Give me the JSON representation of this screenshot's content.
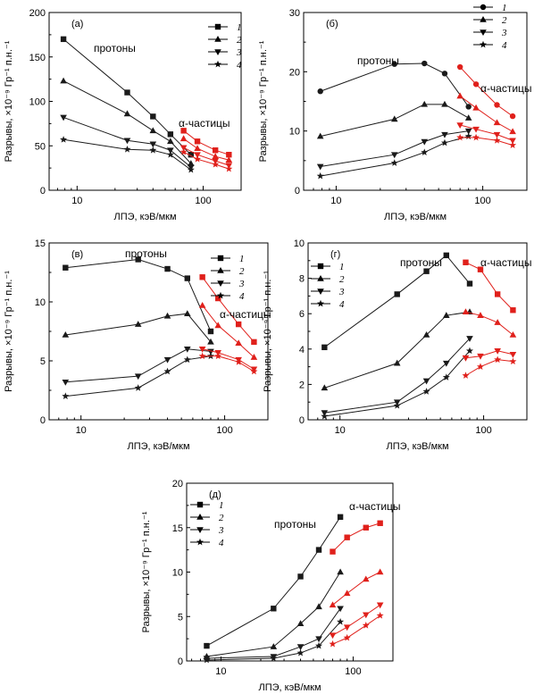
{
  "colors": {
    "protons": "#1a1a1a",
    "alpha": "#e0201b"
  },
  "common": {
    "ylabel": "Разрывы, ×10⁻⁹ Гр⁻¹ п.н.⁻¹",
    "xlabel": "ЛПЭ, кэВ/мкм",
    "protons_label": "протоны",
    "alpha_label": "α-частицы"
  },
  "chart_data": [
    {
      "type": "line",
      "panel": "(а)",
      "xscale": "log",
      "xlim": [
        6,
        200
      ],
      "ylim": [
        0,
        200
      ],
      "yticks": [
        0,
        50,
        100,
        150,
        200
      ],
      "xticks": [
        10,
        100
      ],
      "legend": [
        "1",
        "2",
        "3",
        "4"
      ],
      "protons": [
        {
          "name": "1",
          "marker": "square",
          "x": [
            7.8,
            25,
            40,
            55,
            80
          ],
          "y": [
            170,
            110,
            83,
            63,
            40
          ]
        },
        {
          "name": "2",
          "marker": "triangle-up",
          "x": [
            7.8,
            25,
            40,
            55,
            80
          ],
          "y": [
            123,
            86,
            67,
            55,
            30
          ]
        },
        {
          "name": "3",
          "marker": "triangle-down",
          "x": [
            7.8,
            25,
            40,
            55,
            80
          ],
          "y": [
            82,
            56,
            52,
            45,
            26
          ]
        },
        {
          "name": "4",
          "marker": "star",
          "x": [
            7.8,
            25,
            40,
            55,
            80
          ],
          "y": [
            57,
            46,
            45,
            40,
            23
          ]
        }
      ],
      "alpha": [
        {
          "name": "1",
          "marker": "square",
          "x": [
            70,
            90,
            125,
            160
          ],
          "y": [
            67,
            55,
            45,
            40
          ]
        },
        {
          "name": "2",
          "marker": "triangle-up",
          "x": [
            70,
            90,
            125,
            160
          ],
          "y": [
            58,
            47,
            38,
            34
          ]
        },
        {
          "name": "3",
          "marker": "triangle-down",
          "x": [
            70,
            90,
            125,
            160
          ],
          "y": [
            48,
            40,
            33,
            28
          ]
        },
        {
          "name": "4",
          "marker": "star",
          "x": [
            70,
            90,
            125,
            160
          ],
          "y": [
            43,
            35,
            29,
            24
          ]
        }
      ]
    },
    {
      "type": "line",
      "panel": "(б)",
      "xscale": "log",
      "xlim": [
        6,
        200
      ],
      "ylim": [
        0,
        30
      ],
      "yticks": [
        0,
        10,
        20,
        30
      ],
      "xticks": [
        10,
        100
      ],
      "legend": [
        "1",
        "2",
        "3",
        "4"
      ],
      "protons": [
        {
          "name": "1",
          "marker": "circle",
          "x": [
            7.8,
            25,
            40,
            55,
            80
          ],
          "y": [
            16.7,
            21.3,
            21.4,
            19.7,
            14.1
          ]
        },
        {
          "name": "2",
          "marker": "triangle-up",
          "x": [
            7.8,
            25,
            40,
            55,
            80
          ],
          "y": [
            9.1,
            12.0,
            14.5,
            14.5,
            12.2
          ]
        },
        {
          "name": "3",
          "marker": "triangle-down",
          "x": [
            7.8,
            25,
            40,
            55,
            80
          ],
          "y": [
            4.0,
            6.0,
            8.2,
            9.4,
            10.0
          ]
        },
        {
          "name": "4",
          "marker": "star",
          "x": [
            7.8,
            25,
            40,
            55,
            80
          ],
          "y": [
            2.4,
            4.6,
            6.4,
            8.0,
            9.1
          ]
        }
      ],
      "alpha": [
        {
          "name": "1",
          "marker": "circle",
          "x": [
            70,
            90,
            125,
            160
          ],
          "y": [
            20.8,
            17.9,
            14.4,
            12.5
          ]
        },
        {
          "name": "2",
          "marker": "triangle-up",
          "x": [
            70,
            90,
            125,
            160
          ],
          "y": [
            15.9,
            13.9,
            11.4,
            9.9
          ]
        },
        {
          "name": "3",
          "marker": "triangle-down",
          "x": [
            70,
            90,
            125,
            160
          ],
          "y": [
            11.0,
            10.3,
            9.4,
            8.4
          ]
        },
        {
          "name": "4",
          "marker": "star",
          "x": [
            70,
            90,
            125,
            160
          ],
          "y": [
            8.9,
            8.9,
            8.4,
            7.6
          ]
        }
      ]
    },
    {
      "type": "line",
      "panel": "(в)",
      "xscale": "log",
      "xlim": [
        6,
        200
      ],
      "ylim": [
        0,
        15
      ],
      "yticks": [
        0,
        5,
        10,
        15
      ],
      "xticks": [
        10,
        100
      ],
      "legend": [
        "1",
        "2",
        "3",
        "4"
      ],
      "protons": [
        {
          "name": "1",
          "marker": "square",
          "x": [
            7.8,
            25,
            40,
            55,
            80
          ],
          "y": [
            12.9,
            13.6,
            12.8,
            12.0,
            7.5
          ]
        },
        {
          "name": "2",
          "marker": "triangle-up",
          "x": [
            7.8,
            25,
            40,
            55,
            80
          ],
          "y": [
            7.2,
            8.1,
            8.8,
            9.0,
            6.6
          ]
        },
        {
          "name": "3",
          "marker": "triangle-down",
          "x": [
            7.8,
            25,
            40,
            55,
            80
          ],
          "y": [
            3.2,
            3.7,
            5.1,
            6.0,
            5.8
          ]
        },
        {
          "name": "4",
          "marker": "star",
          "x": [
            7.8,
            25,
            40,
            55,
            80
          ],
          "y": [
            2.0,
            2.7,
            4.1,
            5.1,
            5.4
          ]
        }
      ],
      "alpha": [
        {
          "name": "1",
          "marker": "square",
          "x": [
            70,
            90,
            125,
            160
          ],
          "y": [
            12.1,
            10.3,
            8.1,
            6.6
          ]
        },
        {
          "name": "2",
          "marker": "triangle-up",
          "x": [
            70,
            90,
            125,
            160
          ],
          "y": [
            9.7,
            8.0,
            6.5,
            5.3
          ]
        },
        {
          "name": "3",
          "marker": "triangle-down",
          "x": [
            70,
            90,
            125,
            160
          ],
          "y": [
            6.0,
            5.7,
            5.1,
            4.3
          ]
        },
        {
          "name": "4",
          "marker": "star",
          "x": [
            70,
            90,
            125,
            160
          ],
          "y": [
            5.4,
            5.4,
            4.9,
            4.1
          ]
        }
      ]
    },
    {
      "type": "line",
      "panel": "(г)",
      "xscale": "log",
      "xlim": [
        6,
        200
      ],
      "ylim": [
        0,
        10
      ],
      "yticks": [
        0,
        2,
        4,
        6,
        8,
        10
      ],
      "xticks": [
        10,
        100
      ],
      "legend": [
        "1",
        "2",
        "3",
        "4"
      ],
      "protons": [
        {
          "name": "1",
          "marker": "square",
          "x": [
            7.8,
            25,
            40,
            55,
            80
          ],
          "y": [
            4.1,
            7.1,
            8.4,
            9.3,
            7.7
          ]
        },
        {
          "name": "2",
          "marker": "triangle-up",
          "x": [
            7.8,
            25,
            40,
            55,
            80
          ],
          "y": [
            1.8,
            3.2,
            4.8,
            5.9,
            6.1
          ]
        },
        {
          "name": "3",
          "marker": "triangle-down",
          "x": [
            7.8,
            25,
            40,
            55,
            80
          ],
          "y": [
            0.4,
            1.0,
            2.2,
            3.2,
            4.6
          ]
        },
        {
          "name": "4",
          "marker": "star",
          "x": [
            7.8,
            25,
            40,
            55,
            80
          ],
          "y": [
            0.2,
            0.8,
            1.6,
            2.4,
            3.9
          ]
        }
      ],
      "alpha": [
        {
          "name": "1",
          "marker": "square",
          "x": [
            75,
            95,
            125,
            160
          ],
          "y": [
            8.9,
            8.5,
            7.1,
            6.2
          ]
        },
        {
          "name": "2",
          "marker": "triangle-up",
          "x": [
            75,
            95,
            125,
            160
          ],
          "y": [
            6.1,
            5.9,
            5.5,
            4.8
          ]
        },
        {
          "name": "3",
          "marker": "triangle-down",
          "x": [
            75,
            95,
            125,
            160
          ],
          "y": [
            3.5,
            3.6,
            3.9,
            3.7
          ]
        },
        {
          "name": "4",
          "marker": "star",
          "x": [
            75,
            95,
            125,
            160
          ],
          "y": [
            2.5,
            3.0,
            3.4,
            3.3
          ]
        }
      ]
    },
    {
      "type": "line",
      "panel": "(д)",
      "xscale": "log",
      "xlim": [
        5.5,
        200
      ],
      "ylim": [
        0,
        20
      ],
      "yticks": [
        0,
        5,
        10,
        15,
        20
      ],
      "xticks": [
        10,
        100
      ],
      "legend": [
        "1",
        "2",
        "3",
        "4"
      ],
      "protons": [
        {
          "name": "1",
          "marker": "square",
          "x": [
            7.8,
            25,
            40,
            55,
            80
          ],
          "y": [
            1.7,
            5.9,
            9.5,
            12.5,
            16.2
          ]
        },
        {
          "name": "2",
          "marker": "triangle-up",
          "x": [
            7.8,
            25,
            40,
            55,
            80
          ],
          "y": [
            0.5,
            1.6,
            4.2,
            6.1,
            10.0
          ]
        },
        {
          "name": "3",
          "marker": "triangle-down",
          "x": [
            7.8,
            25,
            40,
            55,
            80
          ],
          "y": [
            0.3,
            0.5,
            1.6,
            2.5,
            5.9
          ]
        },
        {
          "name": "4",
          "marker": "star",
          "x": [
            7.8,
            25,
            40,
            55,
            80
          ],
          "y": [
            0.1,
            0.3,
            0.9,
            1.7,
            4.4
          ]
        }
      ],
      "alpha": [
        {
          "name": "1",
          "marker": "square",
          "x": [
            70,
            90,
            125,
            160
          ],
          "y": [
            12.3,
            13.9,
            15.0,
            15.5
          ]
        },
        {
          "name": "2",
          "marker": "triangle-up",
          "x": [
            70,
            90,
            125,
            160
          ],
          "y": [
            6.3,
            7.6,
            9.2,
            10.0
          ]
        },
        {
          "name": "3",
          "marker": "triangle-down",
          "x": [
            70,
            90,
            125,
            160
          ],
          "y": [
            2.9,
            3.8,
            5.2,
            6.3
          ]
        },
        {
          "name": "4",
          "marker": "star",
          "x": [
            70,
            90,
            125,
            160
          ],
          "y": [
            1.9,
            2.6,
            4.0,
            5.1
          ]
        }
      ]
    }
  ]
}
